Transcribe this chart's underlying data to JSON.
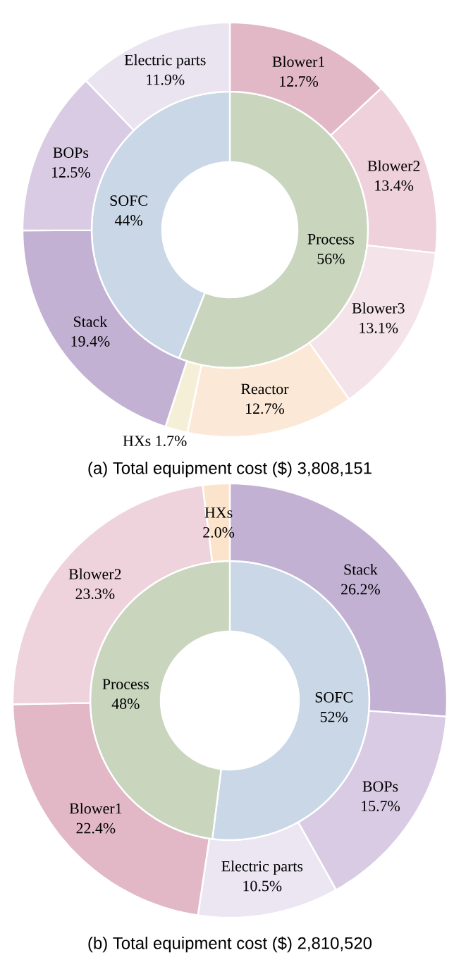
{
  "chart_data": [
    {
      "type": "donut",
      "categories": [
        "Process",
        "SOFC"
      ],
      "values": [
        56,
        44
      ],
      "value_labels": [
        "56%",
        "44%"
      ],
      "colors": [
        "#c9d5bd",
        "#c9d7e6"
      ]
    },
    {
      "type": "donut",
      "title": "(a) Total equipment cost ($) 3,808,151",
      "categories": [
        "Blower1",
        "Blower2",
        "Blower3",
        "Reactor",
        "HXs",
        "Stack",
        "BOPs",
        "Electric parts"
      ],
      "values": [
        12.7,
        13.4,
        13.1,
        12.7,
        1.7,
        19.4,
        12.5,
        11.9
      ],
      "value_labels": [
        "12.7%",
        "13.4%",
        "13.1%",
        "12.7%",
        "1.7%",
        "19.4%",
        "12.5%",
        "11.9%"
      ],
      "colors": [
        "#e2b8c7",
        "#eed1da",
        "#f4e3e9",
        "#fce8d6",
        "#f6efd8",
        "#c3b1d4",
        "#d8cbe3",
        "#e9e4f0"
      ]
    },
    {
      "type": "donut",
      "categories": [
        "SOFC",
        "Process"
      ],
      "values": [
        52,
        48
      ],
      "value_labels": [
        "52%",
        "48%"
      ],
      "colors": [
        "#c9d7e6",
        "#c9d5bd"
      ]
    },
    {
      "type": "donut",
      "title": "(b) Total equipment cost ($) 2,810,520",
      "categories": [
        "Stack",
        "BOPs",
        "Electric parts",
        "Blower1",
        "Blower2",
        "HXs"
      ],
      "values": [
        26.2,
        15.7,
        10.5,
        22.4,
        23.3,
        2.0
      ],
      "value_labels": [
        "26.2%",
        "15.7%",
        "10.5%",
        "22.4%",
        "23.3%",
        "2.0%"
      ],
      "colors": [
        "#c3b1d4",
        "#d8cbe3",
        "#ebe6f2",
        "#e2b8c7",
        "#efd3dc",
        "#fbe3cc"
      ]
    }
  ]
}
